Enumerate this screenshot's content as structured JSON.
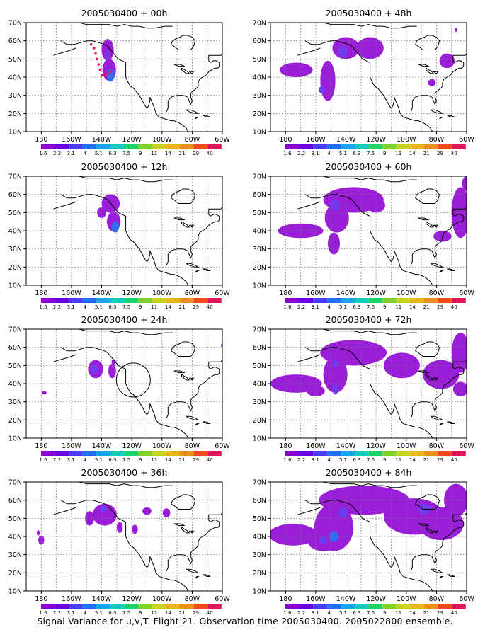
{
  "figure": {
    "caption": "Signal Variance for u,v,T. Flight 21. Observation time 2005030400. 2005022800 ensemble.",
    "lat_labels": [
      "70N",
      "60N",
      "50N",
      "40N",
      "30N",
      "20N",
      "10N"
    ],
    "lon_labels": [
      "180",
      "160W",
      "140W",
      "120W",
      "100W",
      "80W",
      "60W"
    ],
    "colorbar": {
      "values": [
        "1.6",
        "2.2",
        "3.1",
        "4",
        "5.1",
        "6.3",
        "7.5",
        "9",
        "11",
        "14",
        "21",
        "29",
        "40"
      ],
      "colors": [
        "#8c00d4",
        "#6a00e0",
        "#4a3cf0",
        "#1f6ef5",
        "#1aa3ef",
        "#16c9bd",
        "#1ed26a",
        "#80d22a",
        "#c8d21e",
        "#e8b51a",
        "#f08c1a",
        "#f04a1a",
        "#e0145a"
      ]
    },
    "extent": {
      "lon_min": 170,
      "lon_max": 300,
      "lat_min": 10,
      "lat_max": 70
    },
    "panels": [
      {
        "id": "p00",
        "title": "2005030400 + 00h",
        "col": 0,
        "row": 0,
        "circle": false,
        "track": true,
        "blobs": [
          {
            "lon": 224,
            "lat": 55,
            "rx": 4,
            "ry": 6,
            "level": 0
          },
          {
            "lon": 225,
            "lat": 44,
            "rx": 4.5,
            "ry": 6,
            "level": 0
          },
          {
            "lon": 226,
            "lat": 41,
            "rx": 2.5,
            "ry": 3.5,
            "level": 2
          },
          {
            "lon": 224,
            "lat": 52,
            "rx": 1.5,
            "ry": 2,
            "level": 1
          }
        ]
      },
      {
        "id": "p12",
        "title": "2005030400 + 12h",
        "col": 0,
        "row": 1,
        "circle": false,
        "track": false,
        "blobs": [
          {
            "lon": 226,
            "lat": 55,
            "rx": 6,
            "ry": 5,
            "level": 0
          },
          {
            "lon": 228,
            "lat": 45,
            "rx": 4.5,
            "ry": 5.5,
            "level": 0
          },
          {
            "lon": 229,
            "lat": 42,
            "rx": 2.5,
            "ry": 3,
            "level": 2
          },
          {
            "lon": 220,
            "lat": 50,
            "rx": 3,
            "ry": 3,
            "level": 0
          }
        ]
      },
      {
        "id": "p24",
        "title": "2005030400 + 24h",
        "col": 0,
        "row": 2,
        "circle": true,
        "track": false,
        "blobs": [
          {
            "lon": 216,
            "lat": 48,
            "rx": 5,
            "ry": 5,
            "level": 0
          },
          {
            "lon": 215,
            "lat": 48,
            "rx": 2.5,
            "ry": 2.5,
            "level": 1
          },
          {
            "lon": 227,
            "lat": 47,
            "rx": 2.5,
            "ry": 4,
            "level": 0
          },
          {
            "lon": 228,
            "lat": 52,
            "rx": 1.5,
            "ry": 1.5,
            "level": 0
          },
          {
            "lon": 182,
            "lat": 35,
            "rx": 1.5,
            "ry": 1,
            "level": 0
          },
          {
            "lon": 300,
            "lat": 61,
            "rx": 1,
            "ry": 1,
            "level": 0
          }
        ]
      },
      {
        "id": "p36",
        "title": "2005030400 + 36h",
        "col": 0,
        "row": 3,
        "circle": false,
        "track": false,
        "blobs": [
          {
            "lon": 222,
            "lat": 52,
            "rx": 8,
            "ry": 6,
            "level": 0
          },
          {
            "lon": 221,
            "lat": 55,
            "rx": 2,
            "ry": 2,
            "level": 1
          },
          {
            "lon": 212,
            "lat": 50,
            "rx": 3,
            "ry": 4,
            "level": 0
          },
          {
            "lon": 232,
            "lat": 45,
            "rx": 2,
            "ry": 3,
            "level": 0
          },
          {
            "lon": 250,
            "lat": 54,
            "rx": 3,
            "ry": 2,
            "level": 0
          },
          {
            "lon": 263,
            "lat": 53,
            "rx": 2.5,
            "ry": 2.5,
            "level": 0
          },
          {
            "lon": 242,
            "lat": 44,
            "rx": 2,
            "ry": 2.5,
            "level": 0
          },
          {
            "lon": 180,
            "lat": 38,
            "rx": 2,
            "ry": 2.5,
            "level": 0
          },
          {
            "lon": 178,
            "lat": 42,
            "rx": 1,
            "ry": 1.5,
            "level": 0
          }
        ]
      },
      {
        "id": "p48",
        "title": "2005030400 + 48h",
        "col": 1,
        "row": 0,
        "circle": false,
        "track": false,
        "blobs": [
          {
            "lon": 220,
            "lat": 56,
            "rx": 9,
            "ry": 6,
            "level": 0
          },
          {
            "lon": 236,
            "lat": 56,
            "rx": 9,
            "ry": 6,
            "level": 0
          },
          {
            "lon": 218,
            "lat": 54,
            "rx": 3,
            "ry": 3,
            "level": 1
          },
          {
            "lon": 208,
            "lat": 38,
            "rx": 5,
            "ry": 11,
            "level": 0
          },
          {
            "lon": 187,
            "lat": 44,
            "rx": 11,
            "ry": 4,
            "level": 0
          },
          {
            "lon": 204,
            "lat": 33,
            "rx": 2,
            "ry": 2,
            "level": 1
          },
          {
            "lon": 287,
            "lat": 49,
            "rx": 5,
            "ry": 4,
            "level": 0
          },
          {
            "lon": 277,
            "lat": 37,
            "rx": 2.5,
            "ry": 2,
            "level": 0
          },
          {
            "lon": 293,
            "lat": 66,
            "rx": 1,
            "ry": 1,
            "level": 0
          }
        ]
      },
      {
        "id": "p60",
        "title": "2005030400 + 60h",
        "col": 1,
        "row": 1,
        "circle": false,
        "track": false,
        "blobs": [
          {
            "lon": 225,
            "lat": 57,
            "rx": 20,
            "ry": 7,
            "level": 0
          },
          {
            "lon": 214,
            "lat": 47,
            "rx": 8,
            "ry": 8,
            "level": 0
          },
          {
            "lon": 212,
            "lat": 33,
            "rx": 4,
            "ry": 6,
            "level": 0
          },
          {
            "lon": 190,
            "lat": 40,
            "rx": 15,
            "ry": 4,
            "level": 0
          },
          {
            "lon": 213,
            "lat": 54,
            "rx": 3,
            "ry": 3,
            "level": 1
          },
          {
            "lon": 240,
            "lat": 54,
            "rx": 6,
            "ry": 4,
            "level": 0
          },
          {
            "lon": 296,
            "lat": 50,
            "rx": 6,
            "ry": 14,
            "level": 0
          },
          {
            "lon": 284,
            "lat": 37,
            "rx": 6,
            "ry": 3,
            "level": 0
          },
          {
            "lon": 300,
            "lat": 66,
            "rx": 3,
            "ry": 4,
            "level": 0
          }
        ]
      },
      {
        "id": "p72",
        "title": "2005030400 + 72h",
        "col": 1,
        "row": 2,
        "circle": false,
        "track": false,
        "blobs": [
          {
            "lon": 225,
            "lat": 57,
            "rx": 22,
            "ry": 7,
            "level": 0
          },
          {
            "lon": 213,
            "lat": 45,
            "rx": 8,
            "ry": 10,
            "level": 0
          },
          {
            "lon": 213,
            "lat": 51,
            "rx": 2,
            "ry": 2,
            "level": 1
          },
          {
            "lon": 213,
            "lat": 37,
            "rx": 2,
            "ry": 3,
            "level": 1
          },
          {
            "lon": 187,
            "lat": 40,
            "rx": 17,
            "ry": 5,
            "level": 0
          },
          {
            "lon": 200,
            "lat": 36,
            "rx": 6,
            "ry": 3,
            "level": 0
          },
          {
            "lon": 257,
            "lat": 50,
            "rx": 12,
            "ry": 7,
            "level": 0
          },
          {
            "lon": 283,
            "lat": 45,
            "rx": 12,
            "ry": 8,
            "level": 0
          },
          {
            "lon": 296,
            "lat": 57,
            "rx": 6,
            "ry": 11,
            "level": 0
          },
          {
            "lon": 296,
            "lat": 37,
            "rx": 5,
            "ry": 4,
            "level": 0
          }
        ]
      },
      {
        "id": "p84",
        "title": "2005030400 + 84h",
        "col": 1,
        "row": 3,
        "circle": false,
        "track": false,
        "blobs": [
          {
            "lon": 232,
            "lat": 60,
            "rx": 30,
            "ry": 8,
            "level": 0
          },
          {
            "lon": 212,
            "lat": 45,
            "rx": 13,
            "ry": 13,
            "level": 0
          },
          {
            "lon": 185,
            "lat": 41,
            "rx": 16,
            "ry": 6,
            "level": 0
          },
          {
            "lon": 205,
            "lat": 37,
            "rx": 10,
            "ry": 5,
            "level": 0
          },
          {
            "lon": 212,
            "lat": 40,
            "rx": 3,
            "ry": 3,
            "level": 2
          },
          {
            "lon": 205,
            "lat": 38,
            "rx": 3,
            "ry": 2,
            "level": 1
          },
          {
            "lon": 218,
            "lat": 53,
            "rx": 3,
            "ry": 3,
            "level": 1
          },
          {
            "lon": 265,
            "lat": 51,
            "rx": 20,
            "ry": 10,
            "level": 0
          },
          {
            "lon": 283,
            "lat": 47,
            "rx": 15,
            "ry": 9,
            "level": 0
          },
          {
            "lon": 293,
            "lat": 60,
            "rx": 8,
            "ry": 9,
            "level": 0
          },
          {
            "lon": 272,
            "lat": 55,
            "rx": 4,
            "ry": 3,
            "level": 1
          }
        ]
      }
    ]
  }
}
